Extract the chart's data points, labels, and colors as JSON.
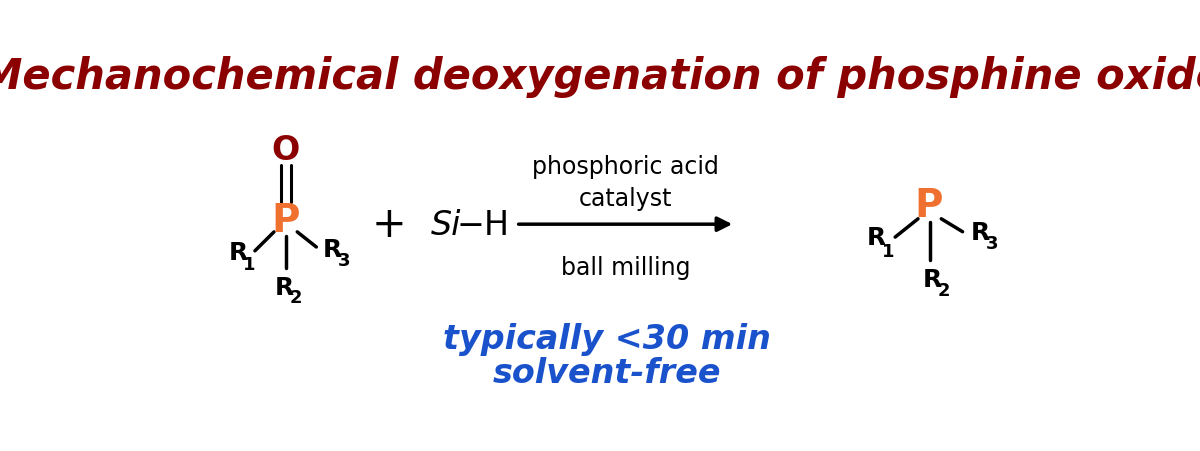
{
  "title": "Mechanochemical deoxygenation of phosphine oxides",
  "title_color": "#8B0000",
  "title_fontsize": 30,
  "title_fontstyle": "italic",
  "title_fontweight": "bold",
  "bg_color": "#FFFFFF",
  "phosphorus_color": "#F07030",
  "oxygen_color": "#8B0000",
  "black_color": "#000000",
  "blue_color": "#1A52CC",
  "arrow_above_text": "phosphoric acid\ncatalyst",
  "arrow_below_text": "ball milling",
  "bottom_text_line1": "typically <30 min",
  "bottom_text_line2": "solvent-free",
  "reagent_text": "Si−H",
  "plus_text": "+",
  "R_fontsize": 18,
  "sup_fontsize": 13,
  "P_fontsize": 28,
  "O_fontsize": 24
}
